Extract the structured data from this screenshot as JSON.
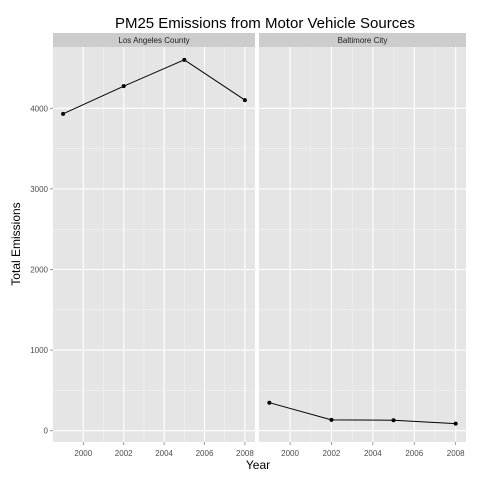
{
  "chart_data": {
    "type": "line",
    "title": "PM25 Emissions from Motor Vehicle Sources",
    "xlabel": "Year",
    "ylabel": "Total Emissions",
    "x_ticks": [
      2000,
      2002,
      2004,
      2006,
      2008
    ],
    "y_ticks": [
      0,
      1000,
      2000,
      3000,
      4000
    ],
    "xlim": [
      1998.5,
      2008.5
    ],
    "ylim": [
      -140,
      4760
    ],
    "grid": true,
    "facets": [
      {
        "name": "Los Angeles County",
        "x": [
          1999,
          2002,
          2005,
          2008
        ],
        "y": [
          3931,
          4274,
          4601,
          4101
        ]
      },
      {
        "name": "Baltimore City",
        "x": [
          1999,
          2002,
          2005,
          2008
        ],
        "y": [
          347,
          134,
          130,
          88
        ]
      }
    ]
  },
  "colors": {
    "panel_background": "#e5e5e5",
    "strip_background": "#cccccc",
    "grid_major": "#ffffff",
    "grid_minor": "#f2f2f2",
    "line": "#000000"
  }
}
